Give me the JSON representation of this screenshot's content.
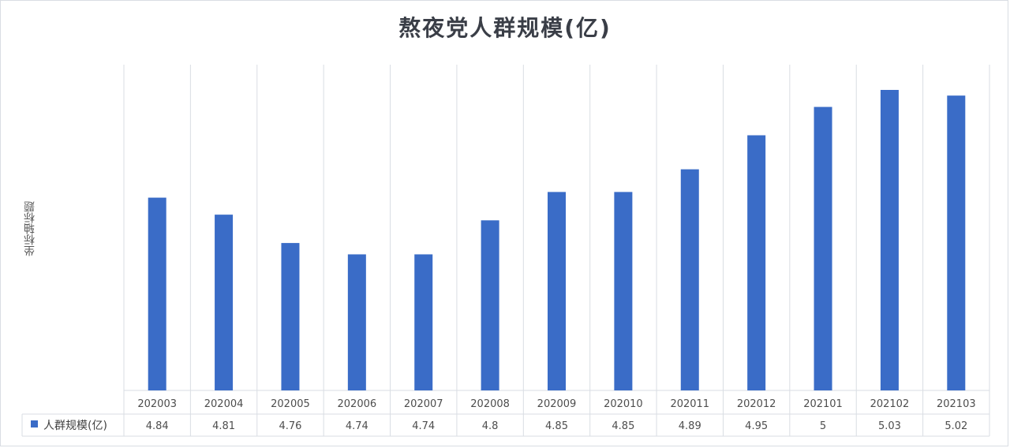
{
  "chart_data": {
    "type": "bar",
    "title": "熬夜党人群规模(亿)",
    "ylabel": "坐标轴标题",
    "xlabel": "",
    "categories": [
      "202003",
      "202004",
      "202005",
      "202006",
      "202007",
      "202008",
      "202009",
      "202010",
      "202011",
      "202012",
      "202101",
      "202102",
      "202103"
    ],
    "series": [
      {
        "name": "人群规模(亿)",
        "values": [
          4.84,
          4.81,
          4.76,
          4.74,
          4.74,
          4.8,
          4.85,
          4.85,
          4.89,
          4.95,
          5,
          5.03,
          5.02
        ],
        "labels": [
          "4.84",
          "4.81",
          "4.76",
          "4.74",
          "4.74",
          "4.8",
          "4.85",
          "4.85",
          "4.89",
          "4.95",
          "5",
          "5.03",
          "5.02"
        ]
      }
    ],
    "ylim": [
      4.5,
      5.1
    ],
    "data_table": true,
    "grid": "vertical",
    "colors": {
      "bar": "#3a6cc7",
      "grid": "#d9dde3"
    }
  }
}
